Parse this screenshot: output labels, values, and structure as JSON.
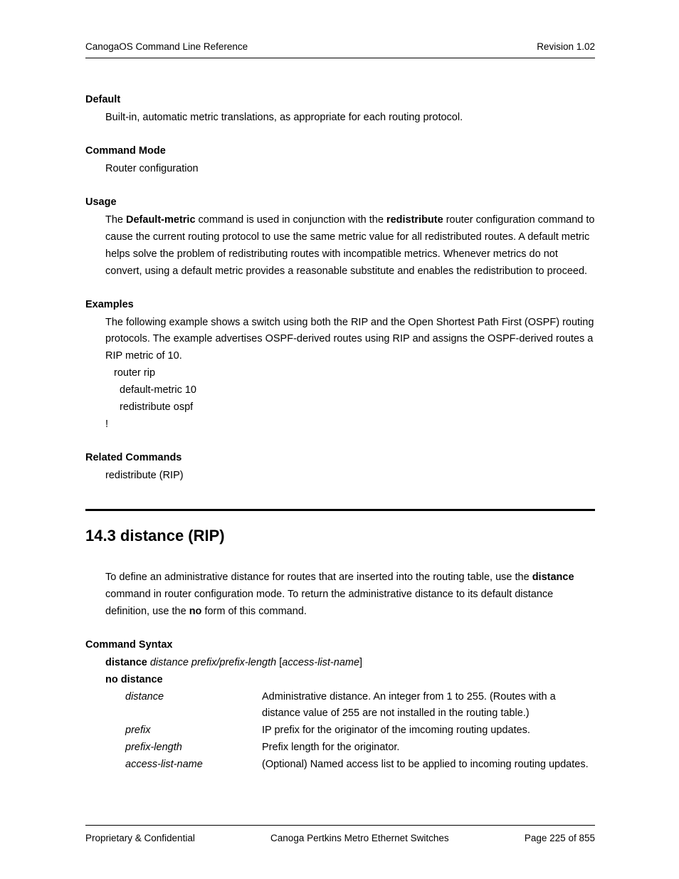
{
  "header": {
    "left": "CanogaOS Command Line Reference",
    "right": "Revision 1.02"
  },
  "sections": {
    "default": {
      "heading": "Default",
      "text": "Built-in, automatic metric translations, as appropriate for each routing protocol."
    },
    "commandMode": {
      "heading": "Command Mode",
      "text": "Router configuration"
    },
    "usage": {
      "heading": "Usage",
      "pre1": "The ",
      "b1": "Default-metric",
      "mid1": " command is used in conjunction with the ",
      "b2": "redistribute",
      "post1": " router configuration command to cause the current routing protocol to use the same metric value for all redistributed routes. A default metric helps solve the problem of redistributing routes with incompatible metrics. Whenever metrics do not convert, using a default metric provides a reasonable substitute and enables the redistribution to proceed."
    },
    "examples": {
      "heading": "Examples",
      "intro": "The following example shows a switch using both the RIP and the Open Shortest Path First (OSPF) routing protocols. The example advertises OSPF-derived routes using RIP and assigns the OSPF-derived routes a RIP metric of 10.",
      "code": {
        "l1": "router rip",
        "l2": "default-metric 10",
        "l3": "redistribute ospf",
        "l4": "!"
      }
    },
    "related": {
      "heading": "Related Commands",
      "text": "redistribute (RIP)"
    }
  },
  "mainTitle": "14.3 distance (RIP)",
  "distance": {
    "intro_pre": "To define an administrative distance for routes that are inserted into the routing table, use the ",
    "intro_b1": "distance",
    "intro_mid": " command in router configuration mode. To return the administrative distance to its default distance definition, use the ",
    "intro_b2": "no",
    "intro_post": " form of this command."
  },
  "syntax": {
    "heading": "Command Syntax",
    "line1_b": "distance",
    "line1_i": " distance prefix/prefix-length ",
    "line1_br1": "[",
    "line1_i2": "access-list-name",
    "line1_br2": "]",
    "line2": "no distance",
    "params": {
      "p1": {
        "name": "distance",
        "desc": "Administrative distance. An integer from 1 to 255. (Routes with a distance value of 255 are not installed in the routing table.)"
      },
      "p2": {
        "name": "prefix",
        "desc": "IP prefix for the originator of the imcoming routing updates."
      },
      "p3": {
        "name": "prefix-length",
        "desc": "Prefix length for the originator."
      },
      "p4": {
        "name": "access-list-name",
        "desc": "(Optional) Named access list to be applied to incoming routing updates."
      }
    }
  },
  "footer": {
    "left": "Proprietary & Confidential",
    "center": "Canoga Pertkins Metro Ethernet Switches",
    "right": "Page 225 of 855"
  }
}
